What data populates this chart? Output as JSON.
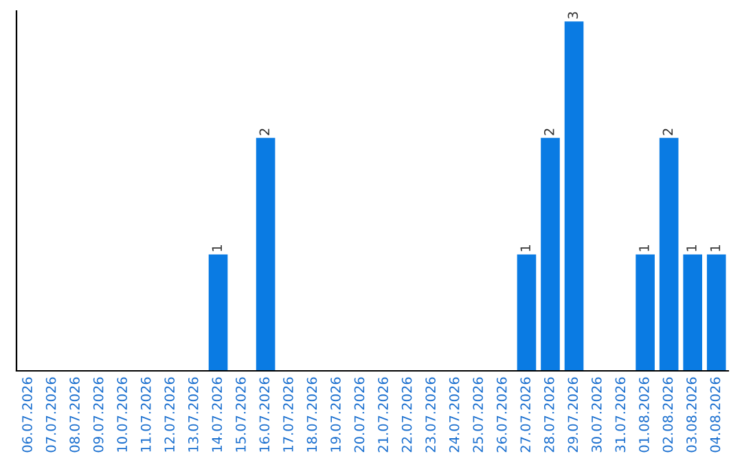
{
  "chart_data": {
    "type": "bar",
    "categories": [
      "06.07.2026",
      "07.07.2026",
      "08.07.2026",
      "09.07.2026",
      "10.07.2026",
      "11.07.2026",
      "12.07.2026",
      "13.07.2026",
      "14.07.2026",
      "15.07.2026",
      "16.07.2026",
      "17.07.2026",
      "18.07.2026",
      "19.07.2026",
      "20.07.2026",
      "21.07.2026",
      "22.07.2026",
      "23.07.2026",
      "24.07.2026",
      "25.07.2026",
      "26.07.2026",
      "27.07.2026",
      "28.07.2026",
      "29.07.2026",
      "30.07.2026",
      "31.07.2026",
      "01.08.2026",
      "02.08.2026",
      "03.08.2026",
      "04.08.2026"
    ],
    "values": [
      0,
      0,
      0,
      0,
      0,
      0,
      0,
      0,
      1,
      0,
      2,
      0,
      0,
      0,
      0,
      0,
      0,
      0,
      0,
      0,
      0,
      1,
      2,
      3,
      0,
      0,
      1,
      2,
      1,
      1
    ],
    "value_labels": [
      null,
      null,
      null,
      null,
      null,
      null,
      null,
      null,
      "1",
      null,
      "2",
      null,
      null,
      null,
      null,
      null,
      null,
      null,
      null,
      null,
      null,
      "1",
      "2",
      "3",
      null,
      null,
      "1",
      "2",
      "1",
      "1"
    ],
    "color": "#0a7be3",
    "grid": false,
    "tick_labels": "x"
  }
}
